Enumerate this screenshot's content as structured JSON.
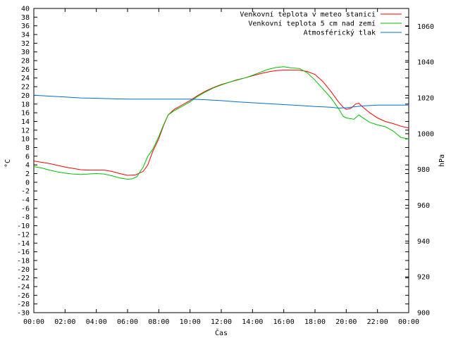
{
  "chart_data": {
    "type": "line",
    "xlabel": "Čas",
    "ylabel_left": "°C",
    "ylabel_right": "hPa",
    "x_ticks": [
      "00:00",
      "02:00",
      "04:00",
      "06:00",
      "08:00",
      "10:00",
      "12:00",
      "14:00",
      "16:00",
      "18:00",
      "20:00",
      "22:00",
      "00:00"
    ],
    "xlim_hours": [
      0,
      24
    ],
    "ylim_left": [
      -30,
      40
    ],
    "ylim_right": [
      900,
      1070
    ],
    "y_left_ticks": [
      40,
      38,
      36,
      34,
      32,
      30,
      28,
      26,
      24,
      22,
      20,
      18,
      16,
      14,
      12,
      10,
      8,
      6,
      4,
      2,
      0,
      -2,
      -4,
      -6,
      -8,
      -10,
      -12,
      -14,
      -16,
      -18,
      -20,
      -22,
      -24,
      -26,
      -28,
      -30
    ],
    "y_right_ticks": [
      1060,
      1040,
      1020,
      1000,
      980,
      960,
      940,
      920,
      900
    ],
    "legend_position": "top-right",
    "grid": false,
    "series": [
      {
        "name": "Venkovní teplota v meteo stanici",
        "color": "#ff0000",
        "axis": "left",
        "points": [
          [
            0,
            4.9
          ],
          [
            0.5,
            4.6
          ],
          [
            1,
            4.3
          ],
          [
            1.5,
            3.9
          ],
          [
            2,
            3.5
          ],
          [
            2.5,
            3.2
          ],
          [
            3,
            2.9
          ],
          [
            3.5,
            2.8
          ],
          [
            4,
            2.8
          ],
          [
            4.5,
            2.8
          ],
          [
            5,
            2.5
          ],
          [
            5.5,
            2.0
          ],
          [
            6,
            1.6
          ],
          [
            6.5,
            1.7
          ],
          [
            7,
            2.5
          ],
          [
            7.3,
            4.0
          ],
          [
            7.6,
            7.0
          ],
          [
            8,
            10.0
          ],
          [
            8.3,
            13.0
          ],
          [
            8.6,
            15.5
          ],
          [
            9,
            16.8
          ],
          [
            9.5,
            17.8
          ],
          [
            10,
            18.8
          ],
          [
            10.5,
            20.0
          ],
          [
            11,
            21.0
          ],
          [
            11.5,
            21.8
          ],
          [
            12,
            22.5
          ],
          [
            12.5,
            23.0
          ],
          [
            13,
            23.5
          ],
          [
            13.5,
            24.0
          ],
          [
            14,
            24.5
          ],
          [
            14.5,
            25.0
          ],
          [
            15,
            25.4
          ],
          [
            15.5,
            25.7
          ],
          [
            16,
            25.8
          ],
          [
            16.5,
            25.8
          ],
          [
            17,
            25.8
          ],
          [
            17.5,
            25.5
          ],
          [
            18,
            24.8
          ],
          [
            18.5,
            23.2
          ],
          [
            19,
            21.0
          ],
          [
            19.5,
            18.5
          ],
          [
            19.8,
            17.3
          ],
          [
            20,
            16.8
          ],
          [
            20.3,
            17.0
          ],
          [
            20.6,
            18.0
          ],
          [
            20.8,
            18.2
          ],
          [
            21,
            17.5
          ],
          [
            21.5,
            16.0
          ],
          [
            22,
            14.8
          ],
          [
            22.5,
            14.0
          ],
          [
            23,
            13.5
          ],
          [
            23.5,
            12.9
          ],
          [
            24,
            12.5
          ]
        ]
      },
      {
        "name": "Venkovní teplota 5 cm nad zemí",
        "color": "#00c000",
        "axis": "left",
        "points": [
          [
            0,
            3.6
          ],
          [
            0.5,
            3.3
          ],
          [
            1,
            2.8
          ],
          [
            1.5,
            2.4
          ],
          [
            2,
            2.1
          ],
          [
            2.5,
            1.9
          ],
          [
            3,
            1.8
          ],
          [
            3.5,
            1.9
          ],
          [
            4,
            2.0
          ],
          [
            4.5,
            1.9
          ],
          [
            5,
            1.5
          ],
          [
            5.5,
            1.0
          ],
          [
            6,
            0.7
          ],
          [
            6.3,
            0.8
          ],
          [
            6.6,
            1.3
          ],
          [
            7,
            3.5
          ],
          [
            7.3,
            6.0
          ],
          [
            7.6,
            7.5
          ],
          [
            8,
            10.5
          ],
          [
            8.3,
            13.2
          ],
          [
            8.6,
            15.5
          ],
          [
            9,
            16.5
          ],
          [
            9.5,
            17.5
          ],
          [
            10,
            18.5
          ],
          [
            10.5,
            19.8
          ],
          [
            11,
            20.8
          ],
          [
            11.5,
            21.7
          ],
          [
            12,
            22.4
          ],
          [
            12.5,
            23.0
          ],
          [
            13,
            23.6
          ],
          [
            13.5,
            24.0
          ],
          [
            14,
            24.6
          ],
          [
            14.5,
            25.3
          ],
          [
            15,
            26.0
          ],
          [
            15.5,
            26.4
          ],
          [
            16,
            26.6
          ],
          [
            16.5,
            26.3
          ],
          [
            17,
            26.2
          ],
          [
            17.5,
            25.2
          ],
          [
            18,
            23.5
          ],
          [
            18.5,
            21.5
          ],
          [
            19,
            19.5
          ],
          [
            19.5,
            17.0
          ],
          [
            19.8,
            15.2
          ],
          [
            20,
            14.8
          ],
          [
            20.5,
            14.5
          ],
          [
            20.8,
            15.5
          ],
          [
            21,
            15.0
          ],
          [
            21.5,
            13.8
          ],
          [
            22,
            13.2
          ],
          [
            22.5,
            12.8
          ],
          [
            23,
            11.8
          ],
          [
            23.5,
            10.3
          ],
          [
            24,
            10.0
          ]
        ]
      },
      {
        "name": "Atmosférický tlak",
        "color": "#0070d0",
        "axis": "right",
        "points": [
          [
            0,
            1021.5
          ],
          [
            1,
            1021.0
          ],
          [
            2,
            1020.5
          ],
          [
            3,
            1020.0
          ],
          [
            4,
            1019.8
          ],
          [
            5,
            1019.5
          ],
          [
            6,
            1019.3
          ],
          [
            7,
            1019.3
          ],
          [
            8,
            1019.3
          ],
          [
            9,
            1019.3
          ],
          [
            10,
            1019.3
          ],
          [
            11,
            1019.0
          ],
          [
            12,
            1018.5
          ],
          [
            13,
            1017.8
          ],
          [
            14,
            1017.3
          ],
          [
            15,
            1016.8
          ],
          [
            16,
            1016.3
          ],
          [
            17,
            1015.8
          ],
          [
            18,
            1015.2
          ],
          [
            19,
            1014.8
          ],
          [
            19.5,
            1014.3
          ],
          [
            20,
            1014.5
          ],
          [
            21,
            1015.5
          ],
          [
            22,
            1016.0
          ],
          [
            23,
            1016.0
          ],
          [
            24,
            1016.0
          ]
        ]
      }
    ]
  }
}
